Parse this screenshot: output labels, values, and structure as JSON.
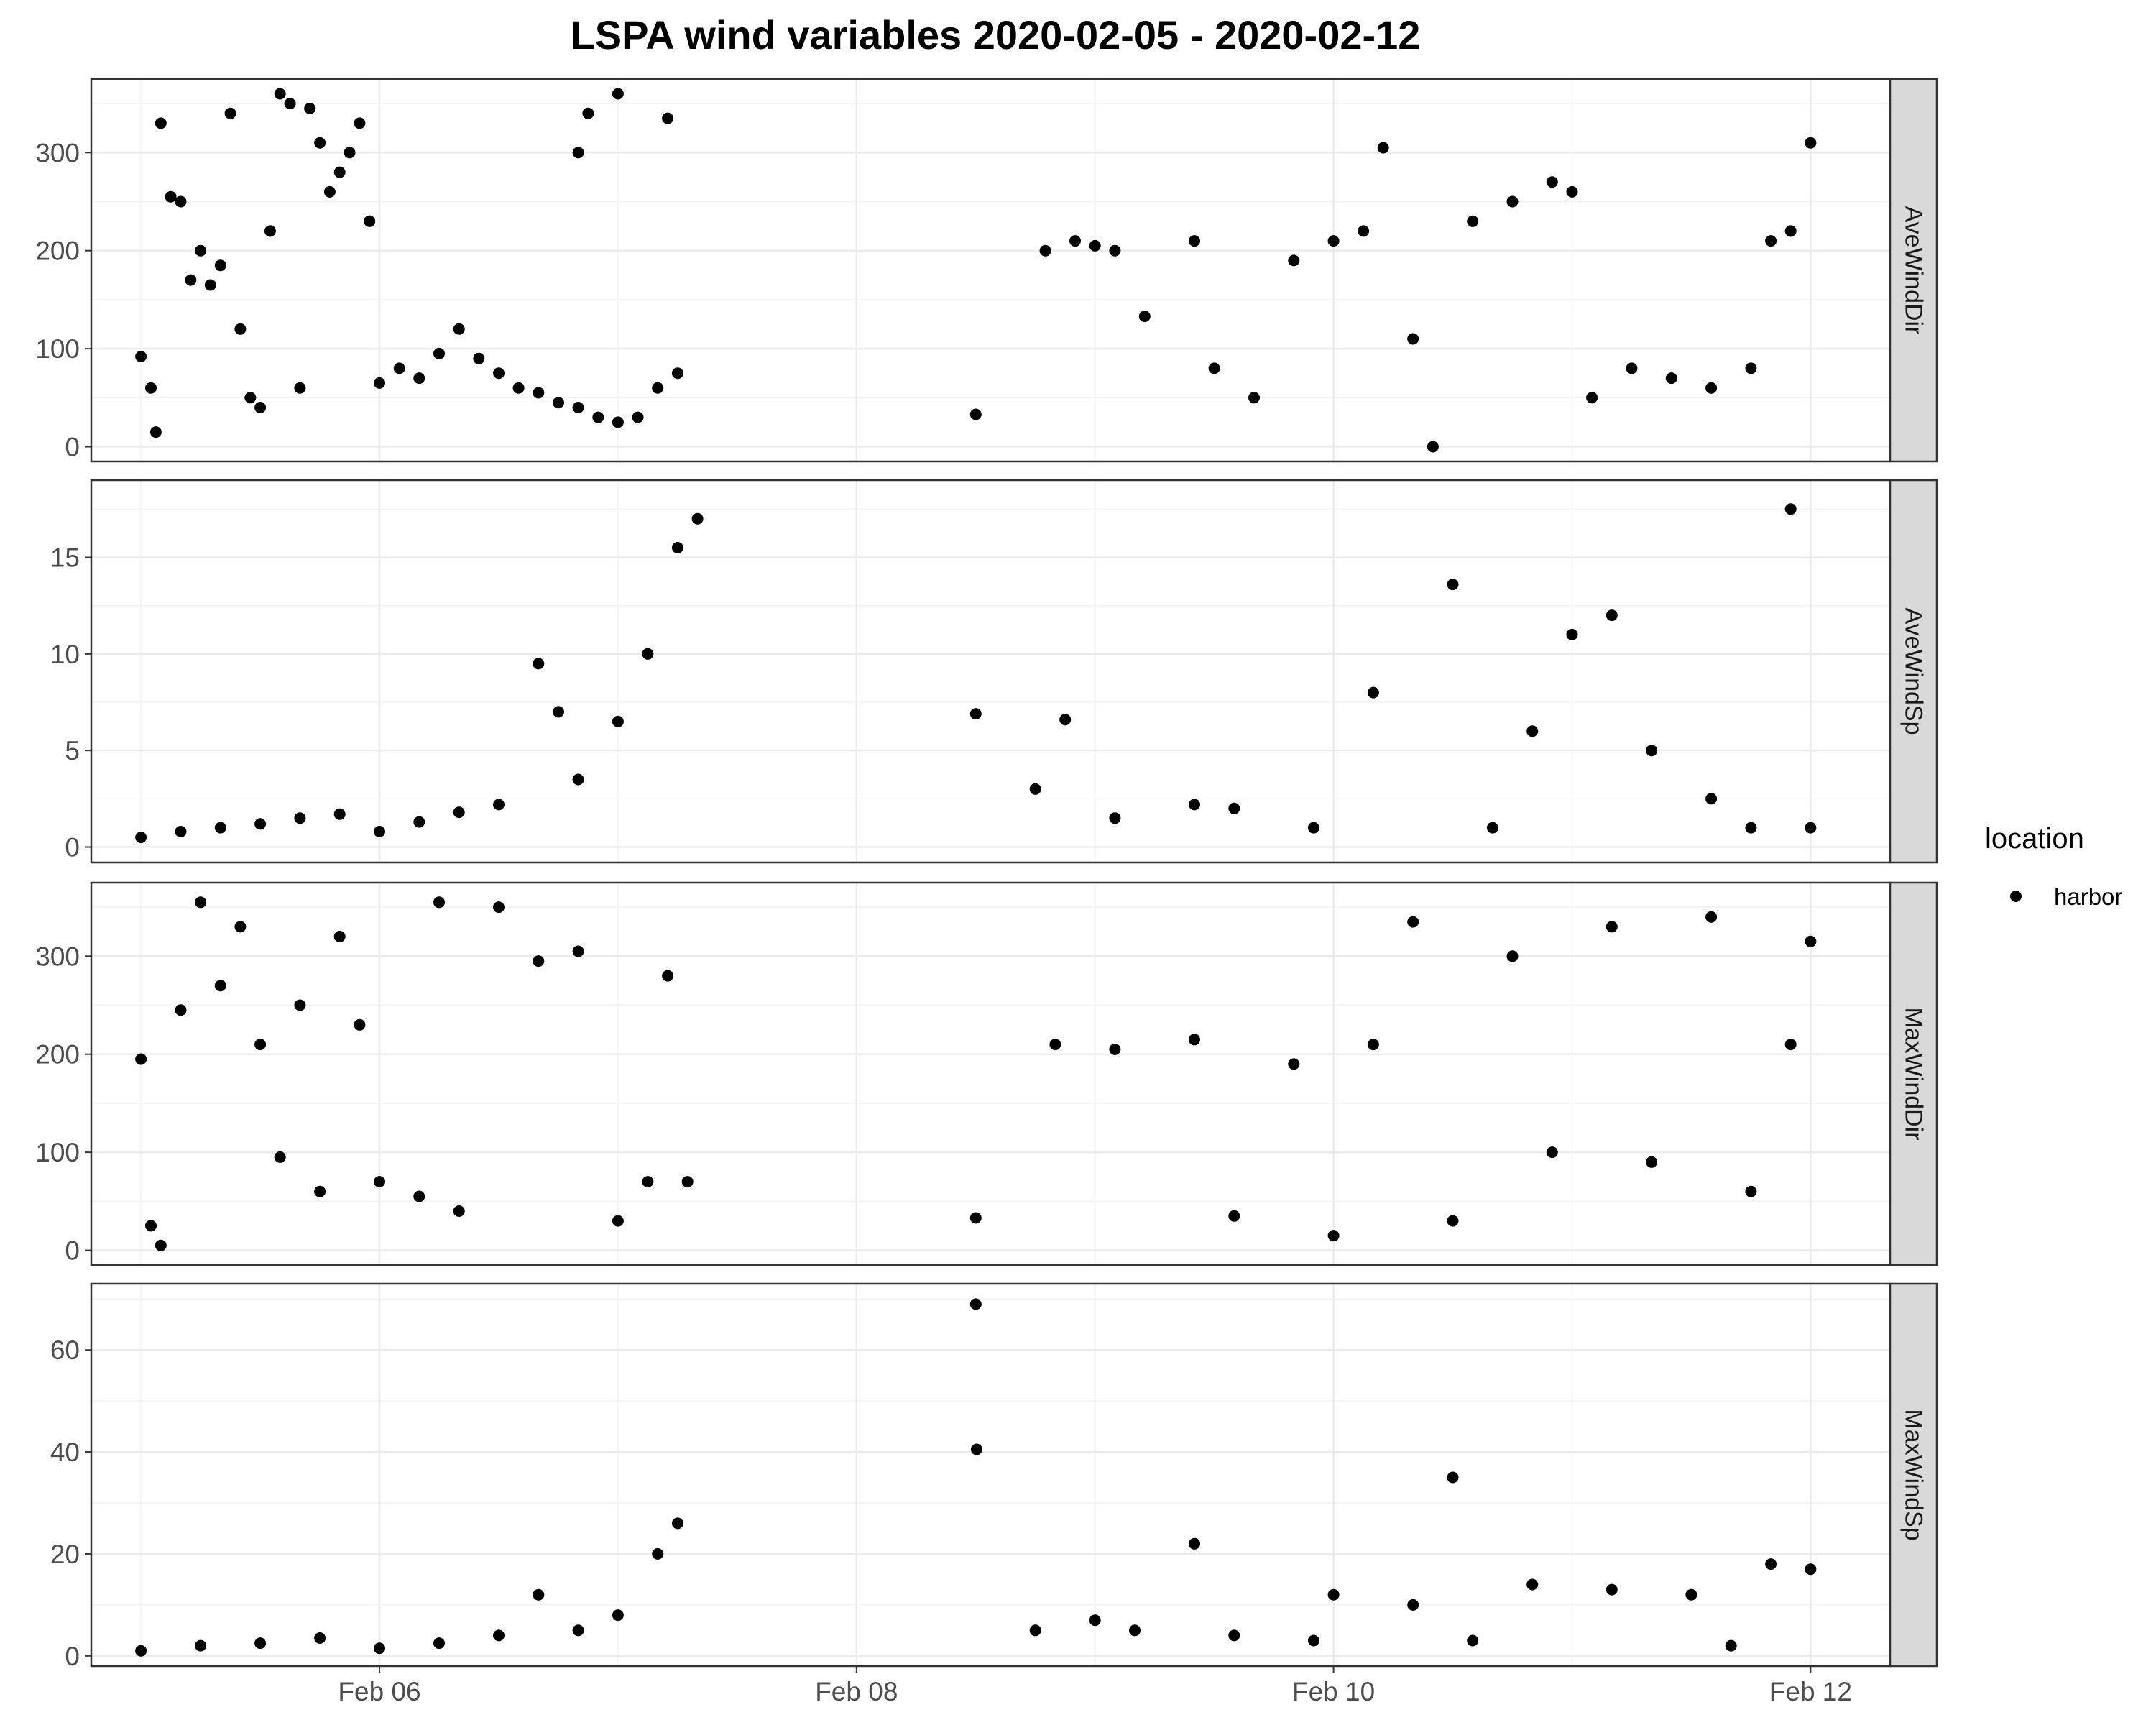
{
  "chart_data": {
    "type": "scatter",
    "title": "LSPA wind variables 2020-02-05 - 2020-02-12",
    "xlabel": "",
    "ylabel": "",
    "x_ticks": [
      "Feb 06",
      "Feb 08",
      "Feb 10",
      "Feb 12"
    ],
    "xlim": [
      "2020-02-04T19:00",
      "2020-02-12T08:00"
    ],
    "grid": true,
    "legend": {
      "title": "location",
      "entries": [
        "harbor"
      ],
      "placement": "right"
    },
    "color": "#000000",
    "panels": [
      {
        "name": "AveWindDir",
        "ylim": [
          -15,
          375
        ],
        "y_ticks": [
          0,
          100,
          200,
          300
        ],
        "points": [
          [
            "2020-02-05T00:00",
            92
          ],
          [
            "2020-02-05T01:00",
            60
          ],
          [
            "2020-02-05T01:30",
            15
          ],
          [
            "2020-02-05T02:00",
            330
          ],
          [
            "2020-02-05T03:00",
            255
          ],
          [
            "2020-02-05T04:00",
            250
          ],
          [
            "2020-02-05T05:00",
            170
          ],
          [
            "2020-02-05T06:00",
            200
          ],
          [
            "2020-02-05T07:00",
            165
          ],
          [
            "2020-02-05T08:00",
            185
          ],
          [
            "2020-02-05T09:00",
            340
          ],
          [
            "2020-02-05T10:00",
            120
          ],
          [
            "2020-02-05T11:00",
            50
          ],
          [
            "2020-02-05T12:00",
            40
          ],
          [
            "2020-02-05T13:00",
            220
          ],
          [
            "2020-02-05T14:00",
            360
          ],
          [
            "2020-02-05T15:00",
            350
          ],
          [
            "2020-02-05T16:00",
            60
          ],
          [
            "2020-02-05T17:00",
            345
          ],
          [
            "2020-02-05T18:00",
            310
          ],
          [
            "2020-02-05T19:00",
            260
          ],
          [
            "2020-02-05T20:00",
            280
          ],
          [
            "2020-02-05T21:00",
            300
          ],
          [
            "2020-02-05T22:00",
            330
          ],
          [
            "2020-02-05T23:00",
            230
          ],
          [
            "2020-02-06T00:00",
            65
          ],
          [
            "2020-02-06T02:00",
            80
          ],
          [
            "2020-02-06T04:00",
            70
          ],
          [
            "2020-02-06T06:00",
            95
          ],
          [
            "2020-02-06T08:00",
            120
          ],
          [
            "2020-02-06T10:00",
            90
          ],
          [
            "2020-02-06T12:00",
            75
          ],
          [
            "2020-02-06T14:00",
            60
          ],
          [
            "2020-02-06T16:00",
            55
          ],
          [
            "2020-02-06T18:00",
            45
          ],
          [
            "2020-02-06T20:00",
            40
          ],
          [
            "2020-02-06T22:00",
            30
          ],
          [
            "2020-02-07T00:00",
            25
          ],
          [
            "2020-02-07T02:00",
            30
          ],
          [
            "2020-02-07T04:00",
            60
          ],
          [
            "2020-02-07T06:00",
            75
          ],
          [
            "2020-02-06T20:00",
            300
          ],
          [
            "2020-02-06T21:00",
            340
          ],
          [
            "2020-02-07T00:00",
            360
          ],
          [
            "2020-02-07T05:00",
            335
          ],
          [
            "2020-02-08T12:00",
            33
          ],
          [
            "2020-02-08T19:00",
            200
          ],
          [
            "2020-02-08T22:00",
            210
          ],
          [
            "2020-02-09T00:00",
            205
          ],
          [
            "2020-02-09T02:00",
            200
          ],
          [
            "2020-02-09T05:00",
            133
          ],
          [
            "2020-02-09T10:00",
            210
          ],
          [
            "2020-02-09T12:00",
            80
          ],
          [
            "2020-02-09T16:00",
            50
          ],
          [
            "2020-02-09T20:00",
            190
          ],
          [
            "2020-02-10T00:00",
            210
          ],
          [
            "2020-02-10T03:00",
            220
          ],
          [
            "2020-02-10T05:00",
            305
          ],
          [
            "2020-02-10T08:00",
            110
          ],
          [
            "2020-02-10T10:00",
            0
          ],
          [
            "2020-02-10T14:00",
            230
          ],
          [
            "2020-02-10T18:00",
            250
          ],
          [
            "2020-02-10T22:00",
            270
          ],
          [
            "2020-02-11T00:00",
            260
          ],
          [
            "2020-02-11T02:00",
            50
          ],
          [
            "2020-02-11T06:00",
            80
          ],
          [
            "2020-02-11T10:00",
            70
          ],
          [
            "2020-02-11T14:00",
            60
          ],
          [
            "2020-02-11T18:00",
            80
          ],
          [
            "2020-02-11T20:00",
            210
          ],
          [
            "2020-02-11T22:00",
            220
          ],
          [
            "2020-02-12T00:00",
            310
          ]
        ]
      },
      {
        "name": "AveWindSp",
        "ylim": [
          -0.8,
          19.0
        ],
        "y_ticks": [
          0,
          5,
          10,
          15
        ],
        "points": [
          [
            "2020-02-05T00:00",
            0.5
          ],
          [
            "2020-02-05T04:00",
            0.8
          ],
          [
            "2020-02-05T08:00",
            1.0
          ],
          [
            "2020-02-05T12:00",
            1.2
          ],
          [
            "2020-02-05T16:00",
            1.5
          ],
          [
            "2020-02-05T20:00",
            1.7
          ],
          [
            "2020-02-06T00:00",
            0.8
          ],
          [
            "2020-02-06T04:00",
            1.3
          ],
          [
            "2020-02-06T08:00",
            1.8
          ],
          [
            "2020-02-06T12:00",
            2.2
          ],
          [
            "2020-02-06T16:00",
            9.5
          ],
          [
            "2020-02-06T18:00",
            7.0
          ],
          [
            "2020-02-06T20:00",
            3.5
          ],
          [
            "2020-02-07T00:00",
            6.5
          ],
          [
            "2020-02-07T03:00",
            10.0
          ],
          [
            "2020-02-07T06:00",
            15.5
          ],
          [
            "2020-02-07T08:00",
            17.0
          ],
          [
            "2020-02-08T12:00",
            6.9
          ],
          [
            "2020-02-08T18:00",
            3.0
          ],
          [
            "2020-02-08T21:00",
            6.6
          ],
          [
            "2020-02-09T02:00",
            1.5
          ],
          [
            "2020-02-09T10:00",
            2.2
          ],
          [
            "2020-02-09T14:00",
            2.0
          ],
          [
            "2020-02-09T22:00",
            1.0
          ],
          [
            "2020-02-10T04:00",
            8.0
          ],
          [
            "2020-02-10T12:00",
            13.6
          ],
          [
            "2020-02-10T16:00",
            1.0
          ],
          [
            "2020-02-10T20:00",
            6.0
          ],
          [
            "2020-02-11T00:00",
            11.0
          ],
          [
            "2020-02-11T04:00",
            12.0
          ],
          [
            "2020-02-11T08:00",
            5.0
          ],
          [
            "2020-02-11T14:00",
            2.5
          ],
          [
            "2020-02-11T18:00",
            1.0
          ],
          [
            "2020-02-11T22:00",
            17.5
          ],
          [
            "2020-02-12T00:00",
            1.0
          ]
        ]
      },
      {
        "name": "MaxWindDir",
        "ylim": [
          -15,
          375
        ],
        "y_ticks": [
          0,
          100,
          200,
          300
        ],
        "points": [
          [
            "2020-02-05T00:00",
            195
          ],
          [
            "2020-02-05T01:00",
            25
          ],
          [
            "2020-02-05T02:00",
            5
          ],
          [
            "2020-02-05T04:00",
            245
          ],
          [
            "2020-02-05T06:00",
            355
          ],
          [
            "2020-02-05T08:00",
            270
          ],
          [
            "2020-02-05T10:00",
            330
          ],
          [
            "2020-02-05T12:00",
            210
          ],
          [
            "2020-02-05T14:00",
            95
          ],
          [
            "2020-02-05T16:00",
            250
          ],
          [
            "2020-02-05T18:00",
            60
          ],
          [
            "2020-02-05T20:00",
            320
          ],
          [
            "2020-02-05T22:00",
            230
          ],
          [
            "2020-02-06T00:00",
            70
          ],
          [
            "2020-02-06T04:00",
            55
          ],
          [
            "2020-02-06T06:00",
            355
          ],
          [
            "2020-02-06T08:00",
            40
          ],
          [
            "2020-02-06T12:00",
            350
          ],
          [
            "2020-02-06T16:00",
            295
          ],
          [
            "2020-02-06T20:00",
            305
          ],
          [
            "2020-02-07T00:00",
            30
          ],
          [
            "2020-02-07T03:00",
            70
          ],
          [
            "2020-02-07T05:00",
            280
          ],
          [
            "2020-02-07T07:00",
            70
          ],
          [
            "2020-02-08T12:00",
            33
          ],
          [
            "2020-02-08T20:00",
            210
          ],
          [
            "2020-02-09T02:00",
            205
          ],
          [
            "2020-02-09T10:00",
            215
          ],
          [
            "2020-02-09T14:00",
            35
          ],
          [
            "2020-02-09T20:00",
            190
          ],
          [
            "2020-02-10T00:00",
            15
          ],
          [
            "2020-02-10T04:00",
            210
          ],
          [
            "2020-02-10T08:00",
            335
          ],
          [
            "2020-02-10T12:00",
            30
          ],
          [
            "2020-02-10T18:00",
            300
          ],
          [
            "2020-02-10T22:00",
            100
          ],
          [
            "2020-02-11T04:00",
            330
          ],
          [
            "2020-02-11T08:00",
            90
          ],
          [
            "2020-02-11T14:00",
            340
          ],
          [
            "2020-02-11T18:00",
            60
          ],
          [
            "2020-02-11T22:00",
            210
          ],
          [
            "2020-02-12T00:00",
            315
          ]
        ]
      },
      {
        "name": "MaxWindSp",
        "ylim": [
          -2,
          73
        ],
        "y_ticks": [
          0,
          20,
          40,
          60
        ],
        "points": [
          [
            "2020-02-05T00:00",
            1.0
          ],
          [
            "2020-02-05T06:00",
            2.0
          ],
          [
            "2020-02-05T12:00",
            2.5
          ],
          [
            "2020-02-05T18:00",
            3.5
          ],
          [
            "2020-02-06T00:00",
            1.5
          ],
          [
            "2020-02-06T06:00",
            2.5
          ],
          [
            "2020-02-06T12:00",
            4.0
          ],
          [
            "2020-02-06T16:00",
            12.0
          ],
          [
            "2020-02-06T20:00",
            5.0
          ],
          [
            "2020-02-07T00:00",
            8.0
          ],
          [
            "2020-02-07T04:00",
            20.0
          ],
          [
            "2020-02-07T06:00",
            26.0
          ],
          [
            "2020-02-08T12:00",
            69.0
          ],
          [
            "2020-02-08T12:05",
            40.5
          ],
          [
            "2020-02-08T18:00",
            5.0
          ],
          [
            "2020-02-09T00:00",
            7.0
          ],
          [
            "2020-02-09T04:00",
            5.0
          ],
          [
            "2020-02-09T10:00",
            22.0
          ],
          [
            "2020-02-09T14:00",
            4.0
          ],
          [
            "2020-02-09T22:00",
            3.0
          ],
          [
            "2020-02-10T00:00",
            12.0
          ],
          [
            "2020-02-10T08:00",
            10.0
          ],
          [
            "2020-02-10T12:00",
            35.0
          ],
          [
            "2020-02-10T14:00",
            3.0
          ],
          [
            "2020-02-10T20:00",
            14.0
          ],
          [
            "2020-02-11T04:00",
            13.0
          ],
          [
            "2020-02-11T12:00",
            12.0
          ],
          [
            "2020-02-11T16:00",
            2.0
          ],
          [
            "2020-02-11T20:00",
            18.0
          ],
          [
            "2020-02-12T00:00",
            17.0
          ]
        ]
      }
    ]
  }
}
